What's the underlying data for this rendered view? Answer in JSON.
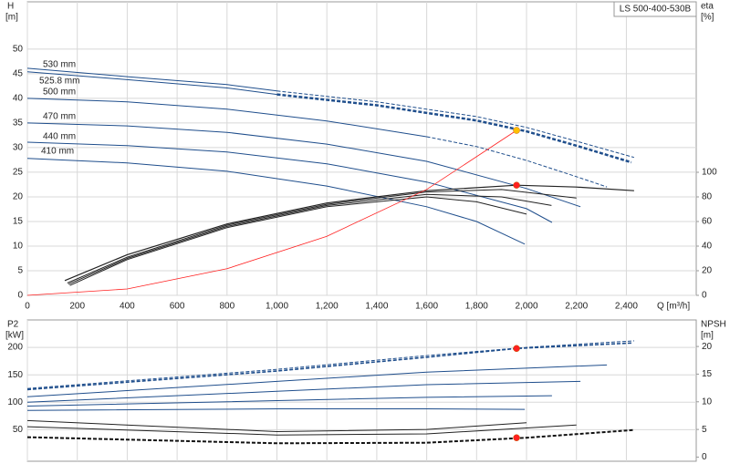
{
  "chart_data": [
    {
      "type": "line",
      "title": "LS 500-400-530B",
      "ylabel": "H",
      "yunit": "[m]",
      "y2label": "eta",
      "y2unit": "[%]",
      "xlabel": "Q [m³/h]",
      "xlim": [
        0,
        2680
      ],
      "ylim": [
        0,
        59.6
      ],
      "y2lim": [
        0,
        238.5
      ],
      "grid": true,
      "xticklabels": true,
      "xticks": [
        0,
        200,
        400,
        600,
        800,
        {
          "value": 1000,
          "label": "1,000"
        },
        {
          "value": 1200,
          "label": "1,200"
        },
        {
          "value": 1400,
          "label": "1,400"
        },
        {
          "value": 1600,
          "label": "1,600"
        },
        {
          "value": 1800,
          "label": "1,800"
        },
        {
          "value": 2000,
          "label": "2,000"
        },
        {
          "value": 2200,
          "label": "2,200"
        },
        {
          "value": 2400,
          "label": "2,400"
        }
      ],
      "yticks": [
        0,
        5,
        10,
        15,
        20,
        25,
        30,
        35,
        40,
        45,
        50
      ],
      "y2ticks": [
        0,
        20,
        40,
        60,
        80,
        100
      ],
      "series": [
        {
          "name": "530 mm",
          "color": "#1f4e8c",
          "dash": false,
          "width": 1,
          "x": [
            0,
            400,
            800,
            1000
          ],
          "values": [
            46.1,
            44.4,
            42.8,
            41.5
          ]
        },
        {
          "color": "#1f4e8c",
          "dash": true,
          "width": 1,
          "x": [
            1000,
            1400,
            1800,
            2000,
            2200,
            2431
          ],
          "values": [
            41.5,
            39.3,
            36.3,
            34.1,
            31.3,
            28.0
          ]
        },
        {
          "name": "525.8 mm",
          "color": "#1f4e8c",
          "dash": false,
          "width": 1,
          "x": [
            0,
            400,
            800,
            1000
          ],
          "values": [
            45.4,
            43.8,
            42.1,
            40.8
          ]
        },
        {
          "color": "#1f4e8c",
          "dash": true,
          "width": 2.5,
          "x": [
            1000,
            1400,
            1800,
            2000,
            2200,
            2420
          ],
          "values": [
            40.8,
            38.6,
            35.5,
            33.3,
            30.4,
            27.0
          ]
        },
        {
          "name": "500 mm",
          "color": "#1f4e8c",
          "dash": false,
          "width": 1,
          "x": [
            0,
            400,
            800,
            1200,
            1600
          ],
          "values": [
            40.0,
            39.3,
            37.8,
            35.4,
            32.2
          ]
        },
        {
          "color": "#1f4e8c",
          "dash": true,
          "width": 1,
          "x": [
            1600,
            1800,
            2000,
            2200,
            2322
          ],
          "values": [
            32.2,
            30.2,
            27.4,
            24.1,
            22.0
          ]
        },
        {
          "name": "470 mm",
          "color": "#1f4e8c",
          "dash": false,
          "width": 1,
          "x": [
            0,
            400,
            800,
            1200,
            1600,
            2000,
            2216
          ],
          "values": [
            35.0,
            34.4,
            33.1,
            30.7,
            27.2,
            21.7,
            18.0
          ]
        },
        {
          "name": "440 mm",
          "color": "#1f4e8c",
          "dash": false,
          "width": 1,
          "x": [
            0,
            400,
            800,
            1200,
            1600,
            2000,
            2102
          ],
          "values": [
            31.1,
            30.4,
            29.1,
            26.7,
            23.0,
            17.6,
            14.8
          ]
        },
        {
          "name": "410 mm",
          "color": "#1f4e8c",
          "dash": false,
          "width": 1,
          "x": [
            0,
            400,
            800,
            1200,
            1600,
            1800,
            1993
          ],
          "values": [
            27.8,
            26.9,
            25.2,
            22.2,
            18.0,
            15.0,
            10.4
          ]
        },
        {
          "color": "#222222",
          "axis": "y2",
          "dash": false,
          "width": 1.2,
          "x": [
            150,
            400,
            800,
            1200,
            1600,
            1960,
            2200,
            2431
          ],
          "values": [
            12,
            33,
            58,
            75,
            85,
            89.5,
            88,
            85
          ]
        },
        {
          "color": "#222222",
          "axis": "y2",
          "dash": false,
          "width": 1,
          "x": [
            160,
            400,
            800,
            1200,
            1600,
            1900,
            2200
          ],
          "values": [
            10,
            31,
            57,
            74,
            84,
            86,
            79
          ]
        },
        {
          "color": "#222222",
          "axis": "y2",
          "dash": false,
          "width": 1,
          "x": [
            165,
            400,
            800,
            1200,
            1600,
            1900,
            2100
          ],
          "values": [
            9,
            30,
            56,
            73,
            82,
            80,
            73
          ]
        },
        {
          "color": "#222222",
          "axis": "y2",
          "dash": false,
          "width": 1,
          "x": [
            170,
            400,
            800,
            1200,
            1600,
            1800,
            2000
          ],
          "values": [
            8,
            29,
            55,
            72,
            80,
            76,
            66
          ]
        },
        {
          "color": "#ff2020",
          "dash": false,
          "width": 0.8,
          "x": [
            0,
            400,
            800,
            1200,
            1600,
            1960
          ],
          "values": [
            0,
            1.3,
            5.4,
            12.0,
            21.5,
            33.5
          ]
        }
      ],
      "markers": [
        {
          "color": "#ffc000",
          "axis": "y",
          "x": 1960,
          "value": 33.5
        },
        {
          "color": "#ff2020",
          "axis": "y2",
          "x": 1960,
          "value": 89.5
        }
      ]
    },
    {
      "type": "line",
      "ylabel": "P2",
      "yunit": "[kW]",
      "y2label": "NPSH",
      "y2unit": "[m]",
      "xlim": [
        0,
        2680
      ],
      "ylim": [
        -7.5,
        250
      ],
      "y2lim": [
        -0.75,
        24.8
      ],
      "grid": true,
      "xticklabels": false,
      "xticks": [
        0,
        200,
        400,
        600,
        800,
        1000,
        1200,
        1400,
        1600,
        1800,
        2000,
        2200,
        2400
      ],
      "yticks": [
        50,
        100,
        150,
        200
      ],
      "y2ticks": [
        0,
        5,
        10,
        15,
        20
      ],
      "series": [
        {
          "color": "#1f4e8c",
          "dash": true,
          "width": 1,
          "x": [
            0,
            1000,
            1600,
            2000,
            2431
          ],
          "values": [
            125,
            160,
            185,
            200,
            212
          ]
        },
        {
          "color": "#1f4e8c",
          "dash": true,
          "width": 1.6,
          "x": [
            0,
            1000,
            1600,
            1960,
            2420
          ],
          "values": [
            123,
            157,
            182,
            198,
            208
          ]
        },
        {
          "color": "#1f4e8c",
          "dash": false,
          "width": 1,
          "x": [
            0,
            1000,
            1600,
            2322
          ],
          "values": [
            110,
            138,
            155,
            168
          ]
        },
        {
          "color": "#1f4e8c",
          "dash": false,
          "width": 1,
          "x": [
            0,
            1000,
            1600,
            2216
          ],
          "values": [
            100,
            120,
            132,
            138
          ]
        },
        {
          "color": "#1f4e8c",
          "dash": false,
          "width": 1,
          "x": [
            0,
            1000,
            1600,
            2102
          ],
          "values": [
            93,
            103,
            109,
            112
          ]
        },
        {
          "color": "#1f4e8c",
          "dash": false,
          "width": 1,
          "x": [
            0,
            1000,
            1600,
            1993
          ],
          "values": [
            85,
            88,
            88,
            87
          ]
        },
        {
          "color": "#111111",
          "axis": "y2",
          "dash": true,
          "width": 2,
          "x": [
            0,
            1000,
            1600,
            2000,
            2431
          ],
          "values": [
            3.6,
            2.5,
            2.6,
            3.5,
            4.9
          ]
        },
        {
          "color": "#222222",
          "axis": "y2",
          "dash": false,
          "width": 1,
          "x": [
            0,
            1000,
            1600,
            2200
          ],
          "values": [
            5.5,
            4.0,
            4.2,
            5.8
          ]
        },
        {
          "color": "#222222",
          "axis": "y2",
          "dash": false,
          "width": 1,
          "x": [
            0,
            1000,
            1600,
            2000
          ],
          "values": [
            6.6,
            4.6,
            5.0,
            6.2
          ]
        }
      ],
      "markers": [
        {
          "color": "#ff2020",
          "axis": "y",
          "x": 1960,
          "value": 198
        },
        {
          "color": "#ff2020",
          "axis": "y2",
          "x": 1960,
          "value": 3.5
        }
      ]
    }
  ]
}
